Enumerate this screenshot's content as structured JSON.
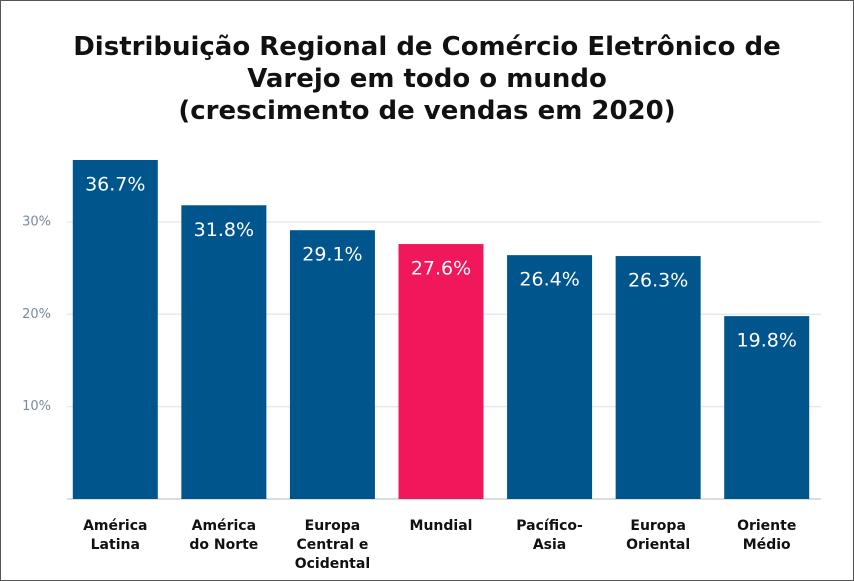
{
  "chart_data": {
    "type": "bar",
    "title": "Distribuição Regional de Comércio Eletrônico de\nVarejo em todo o mundo\n(crescimento de vendas em 2020)",
    "categories": [
      "América\nLatina",
      "América\ndo Norte",
      "Europa\nCentral e\nOcidental",
      "Mundial",
      "Pacífico-\nAsia",
      "Europa\nOriental",
      "Oriente\nMédio"
    ],
    "values": [
      36.7,
      31.8,
      29.1,
      27.6,
      26.4,
      26.3,
      19.8
    ],
    "value_labels": [
      "36.7%",
      "31.8%",
      "29.1%",
      "27.6%",
      "26.4%",
      "26.3%",
      "19.8%"
    ],
    "colors": [
      "#00558c",
      "#00558c",
      "#00558c",
      "#f0185a",
      "#00558c",
      "#00558c",
      "#00558c"
    ],
    "ylim": [
      0,
      38
    ],
    "yticks": [
      {
        "value": 10,
        "label": "10%"
      },
      {
        "value": 20,
        "label": "20%"
      },
      {
        "value": 30,
        "label": "30%"
      }
    ],
    "grid": true
  }
}
